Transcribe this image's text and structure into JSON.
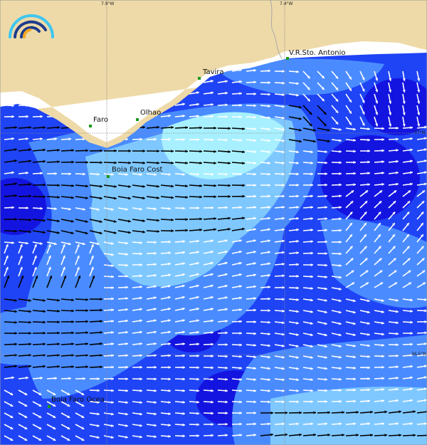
{
  "map": {
    "graticule": {
      "lon_labels": [
        "7.9°W",
        "7.4°W"
      ],
      "lat_labels": [
        "37°N",
        "36.5°N"
      ]
    },
    "places": [
      {
        "name": "V.R.Sto. Antonio"
      },
      {
        "name": "Tavira"
      },
      {
        "name": "Olhao"
      },
      {
        "name": "Faro"
      },
      {
        "name": "Boia Faro Cost"
      },
      {
        "name": "Boia Faro Ocea"
      }
    ],
    "colors": {
      "land": "#eedaa8",
      "shore": "#ffffff",
      "sea_deep": "#1414e0",
      "sea_mid": "#1f44f5",
      "sea_light": "#4a8cff",
      "sea_lighter": "#7fc8ff",
      "sea_lightest": "#a8f0ff",
      "arrow_fast": "#000000",
      "arrow_slow": "#ffffff",
      "station": "#1a9a1a"
    },
    "logo_colors": [
      "#3ec6f0",
      "#1e3c8c",
      "#f6a823"
    ]
  }
}
